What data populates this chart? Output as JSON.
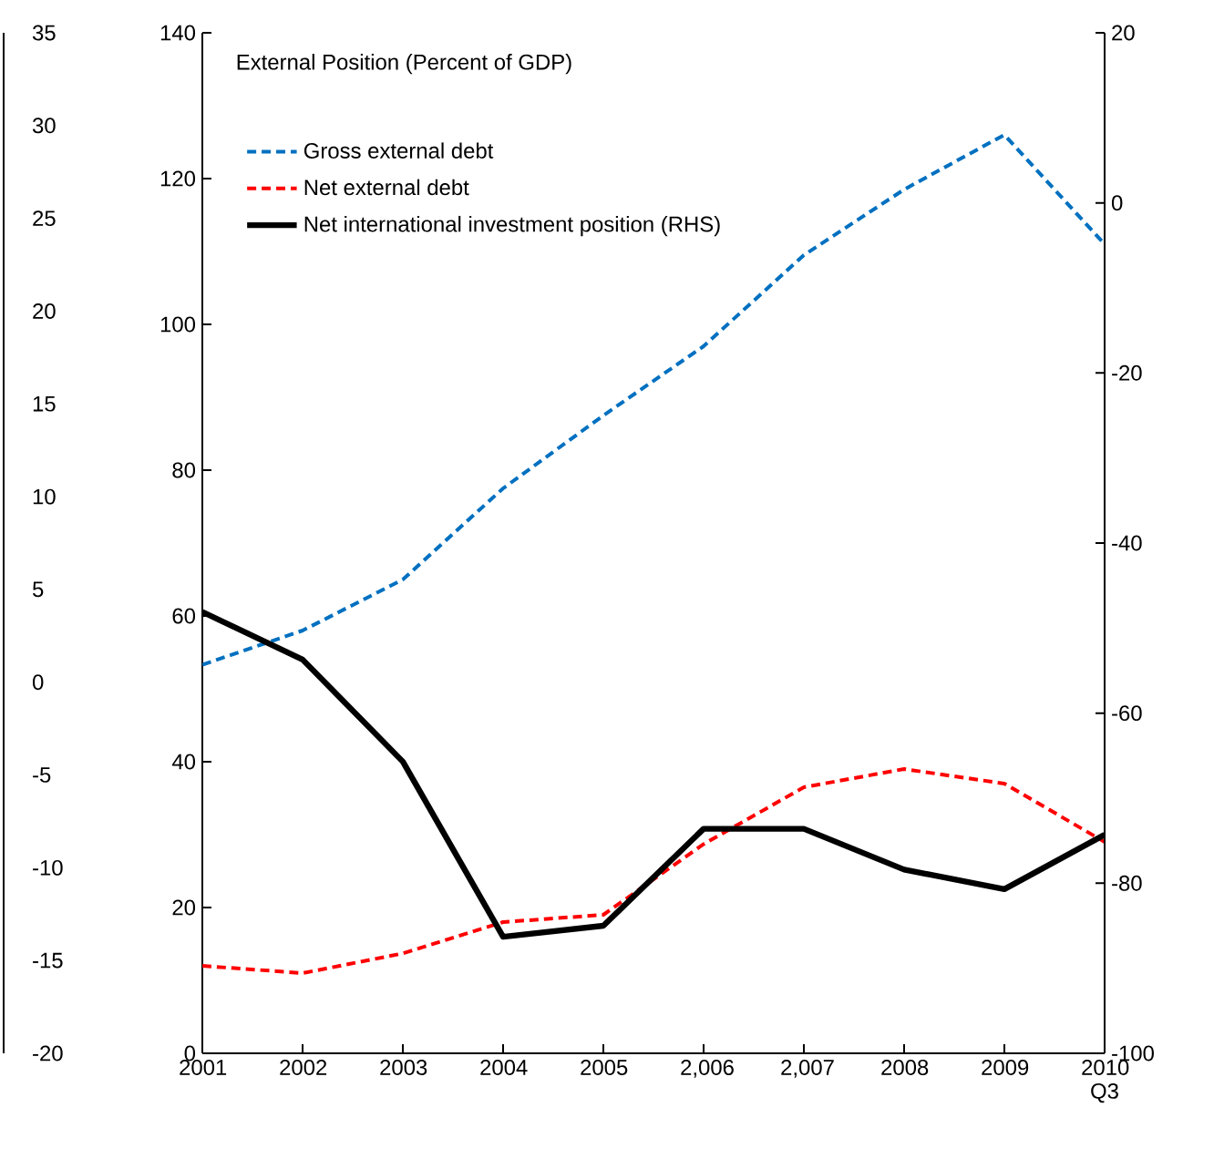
{
  "chart_data": {
    "type": "line",
    "title": "External Position (Percent of GDP)",
    "categories": [
      "2001",
      "2002",
      "2003",
      "2004",
      "2005",
      "2,006",
      "2,007",
      "2008",
      "2009",
      "2010 Q3"
    ],
    "series": [
      {
        "name": "Gross external debt",
        "color": "#0070c0",
        "line_style": "dashed",
        "values": [
          53.3,
          58,
          65,
          77.5,
          87.5,
          97,
          109.5,
          118.5,
          126,
          111
        ]
      },
      {
        "name": "Net external debt",
        "color": "#ff0000",
        "line_style": "dashed",
        "values": [
          12,
          11,
          13.7,
          18,
          19,
          28.7,
          36.5,
          39,
          37,
          29
        ]
      },
      {
        "name": "Net international investment position (RHS)",
        "color": "#000000",
        "line_style": "solid",
        "axis": "y2",
        "values": [
          -48.1,
          -53.7,
          -65.7,
          -86.3,
          -85,
          -73.6,
          -73.6,
          -78.4,
          -80.7,
          -74.3
        ]
      }
    ],
    "ylim": [
      0,
      140
    ],
    "yticks": [
      0,
      20,
      40,
      60,
      80,
      100,
      120,
      140
    ],
    "y2lim": [
      -100,
      20
    ],
    "y2ticks": [
      -100,
      -80,
      -60,
      -40,
      -20,
      0,
      20
    ],
    "y3lim": [
      -20,
      35
    ],
    "y3ticks": [
      -20,
      -15,
      -10,
      -5,
      0,
      5,
      10,
      15,
      20,
      25,
      30,
      35
    ],
    "grid": false,
    "legend": "top left",
    "marker": "none"
  }
}
